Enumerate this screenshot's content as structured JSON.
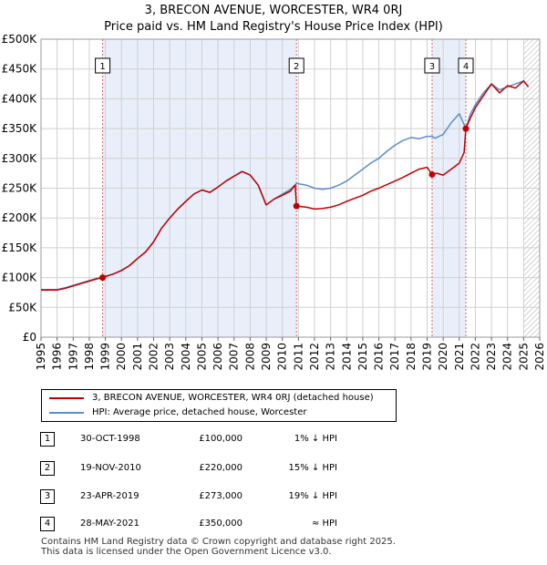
{
  "title": "3, BRECON AVENUE, WORCESTER, WR4 0RJ",
  "subtitle": "Price paid vs. HM Land Registry's House Price Index (HPI)",
  "colors": {
    "price_line": "#c00000",
    "hpi_line": "#5b8ec9",
    "shade": "#e8effa",
    "vline": "#e06060",
    "grid": "#d0d0d0",
    "hatch": "#aaaaaa"
  },
  "legend": [
    {
      "label": "3, BRECON AVENUE, WORCESTER, WR4 0RJ (detached house)"
    },
    {
      "label": "HPI: Average price, detached house, Worcester"
    }
  ],
  "transactions": [
    {
      "num": "1",
      "date": "30-OCT-1998",
      "price": "£100,000",
      "hpi": "1% ↓ HPI"
    },
    {
      "num": "2",
      "date": "19-NOV-2010",
      "price": "£220,000",
      "hpi": "15% ↓ HPI"
    },
    {
      "num": "3",
      "date": "23-APR-2019",
      "price": "£273,000",
      "hpi": "19% ↓ HPI"
    },
    {
      "num": "4",
      "date": "28-MAY-2021",
      "price": "£350,000",
      "hpi": "≈ HPI"
    }
  ],
  "footer": {
    "line1": "Contains HM Land Registry data © Crown copyright and database right 2025.",
    "line2": "This data is licensed under the Open Government Licence v3.0."
  },
  "chart_data": {
    "type": "line",
    "title": "3, BRECON AVENUE, WORCESTER, WR4 0RJ",
    "subtitle": "Price paid vs. HM Land Registry's House Price Index (HPI)",
    "xlabel": "",
    "ylabel": "",
    "xlim": [
      1995,
      2026
    ],
    "ylim": [
      0,
      500000
    ],
    "grid": true,
    "legend_position": "bottom",
    "x_ticks": [
      "1995",
      "1996",
      "1997",
      "1998",
      "1999",
      "2000",
      "2001",
      "2002",
      "2003",
      "2004",
      "2005",
      "2006",
      "2007",
      "2008",
      "2009",
      "2010",
      "2011",
      "2012",
      "2013",
      "2014",
      "2015",
      "2016",
      "2017",
      "2018",
      "2019",
      "2020",
      "2021",
      "2022",
      "2023",
      "2024",
      "2025",
      "2026"
    ],
    "y_ticks": [
      {
        "value": 0,
        "label": "£0"
      },
      {
        "value": 50000,
        "label": "£50K"
      },
      {
        "value": 100000,
        "label": "£100K"
      },
      {
        "value": 150000,
        "label": "£150K"
      },
      {
        "value": 200000,
        "label": "£200K"
      },
      {
        "value": 250000,
        "label": "£250K"
      },
      {
        "value": 300000,
        "label": "£300K"
      },
      {
        "value": 350000,
        "label": "£350K"
      },
      {
        "value": 400000,
        "label": "£400K"
      },
      {
        "value": 450000,
        "label": "£450K"
      },
      {
        "value": 500000,
        "label": "£500K"
      }
    ],
    "shaded_periods": [
      [
        1998.83,
        2010.88
      ],
      [
        2019.31,
        2021.41
      ]
    ],
    "hatched_from": 2025.0,
    "sales": [
      {
        "label": "1",
        "x": 1998.83,
        "y": 100000
      },
      {
        "label": "2",
        "x": 2010.88,
        "y": 220000
      },
      {
        "label": "3",
        "x": 2019.31,
        "y": 273000
      },
      {
        "label": "4",
        "x": 2021.41,
        "y": 350000
      }
    ],
    "series": [
      {
        "name": "HPI: Average price, detached house, Worcester",
        "x": [
          1995.0,
          1995.5,
          1996.0,
          1996.5,
          1997.0,
          1997.5,
          1998.0,
          1998.5,
          1998.83,
          1999.5,
          2000.0,
          2000.5,
          2001.0,
          2001.5,
          2002.0,
          2002.5,
          2003.0,
          2003.5,
          2004.0,
          2004.5,
          2005.0,
          2005.5,
          2006.0,
          2006.5,
          2007.0,
          2007.5,
          2008.0,
          2008.5,
          2009.0,
          2009.5,
          2010.0,
          2010.5,
          2010.88,
          2011.5,
          2012.0,
          2012.5,
          2013.0,
          2013.5,
          2014.0,
          2014.5,
          2015.0,
          2015.5,
          2016.0,
          2016.5,
          2017.0,
          2017.5,
          2018.0,
          2018.5,
          2019.0,
          2019.31,
          2019.5,
          2020.0,
          2020.5,
          2021.0,
          2021.41,
          2021.7,
          2022.0,
          2022.5,
          2023.0,
          2023.5,
          2024.0,
          2024.5,
          2025.0,
          2025.3
        ],
        "values": [
          80000,
          80000,
          80000,
          83000,
          87000,
          91000,
          95000,
          99000,
          101000,
          106000,
          112000,
          120000,
          132000,
          143000,
          160000,
          183000,
          200000,
          215000,
          228000,
          240000,
          247000,
          243000,
          252000,
          262000,
          270000,
          278000,
          272000,
          255000,
          222000,
          232000,
          240000,
          248000,
          258000,
          255000,
          250000,
          248000,
          250000,
          255000,
          262000,
          272000,
          282000,
          292000,
          300000,
          312000,
          322000,
          330000,
          335000,
          333000,
          337000,
          337000,
          334000,
          340000,
          360000,
          375000,
          350000,
          375000,
          390000,
          410000,
          425000,
          415000,
          420000,
          425000,
          430000,
          420000
        ]
      },
      {
        "name": "3, BRECON AVENUE, WORCESTER, WR4 0RJ (detached house)",
        "x": [
          1995.0,
          1995.5,
          1996.0,
          1996.5,
          1997.0,
          1997.5,
          1998.0,
          1998.5,
          1998.83,
          1999.5,
          2000.0,
          2000.5,
          2001.0,
          2001.5,
          2002.0,
          2002.5,
          2003.0,
          2003.5,
          2004.0,
          2004.5,
          2005.0,
          2005.5,
          2006.0,
          2006.5,
          2007.0,
          2007.5,
          2008.0,
          2008.5,
          2009.0,
          2009.5,
          2010.0,
          2010.5,
          2010.8,
          2010.88,
          2011.5,
          2012.0,
          2012.5,
          2013.0,
          2013.5,
          2014.0,
          2014.5,
          2015.0,
          2015.5,
          2016.0,
          2016.5,
          2017.0,
          2017.5,
          2018.0,
          2018.5,
          2019.0,
          2019.31,
          2019.6,
          2020.0,
          2020.5,
          2021.0,
          2021.3,
          2021.41,
          2021.7,
          2022.0,
          2022.5,
          2023.0,
          2023.5,
          2024.0,
          2024.5,
          2025.0,
          2025.3
        ],
        "values": [
          79000,
          79000,
          79000,
          82000,
          86000,
          90000,
          94000,
          98000,
          100000,
          106000,
          112000,
          120000,
          132000,
          143000,
          160000,
          183000,
          200000,
          215000,
          228000,
          240000,
          247000,
          243000,
          252000,
          262000,
          270000,
          278000,
          272000,
          255000,
          222000,
          232000,
          238000,
          245000,
          255000,
          220000,
          218000,
          215000,
          216000,
          218000,
          222000,
          228000,
          233000,
          238000,
          245000,
          250000,
          256000,
          262000,
          268000,
          275000,
          282000,
          285000,
          273000,
          275000,
          272000,
          282000,
          292000,
          310000,
          350000,
          368000,
          385000,
          405000,
          425000,
          410000,
          422000,
          418000,
          430000,
          420000
        ]
      }
    ]
  }
}
